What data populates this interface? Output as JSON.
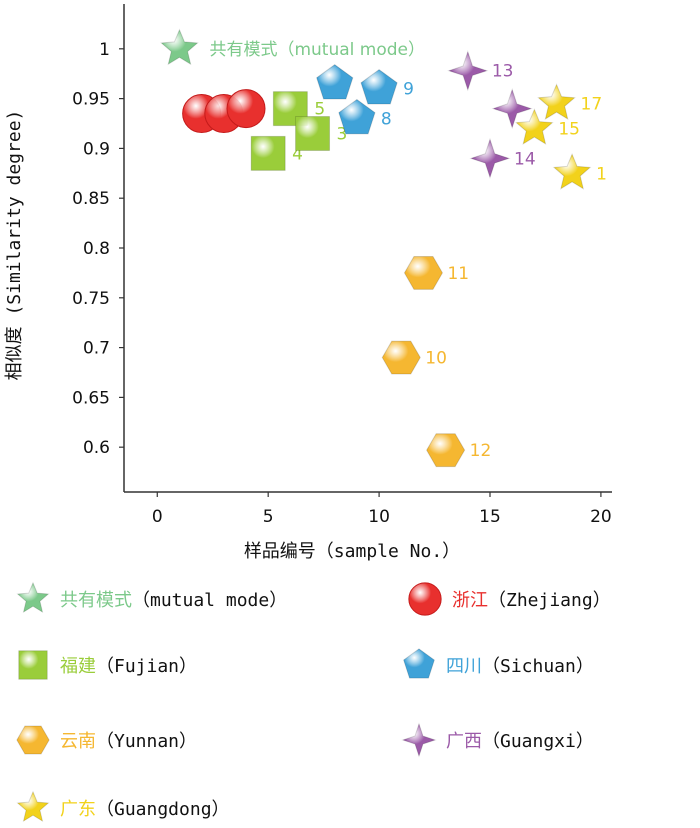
{
  "chart_data": {
    "type": "scatter",
    "xlabel": "样品编号（sample No.）",
    "ylabel": "相似度 (Similarity degree)",
    "xlim": [
      -1.5,
      20.5
    ],
    "ylim": [
      0.555,
      1.045
    ],
    "xticks": [
      0,
      5,
      10,
      15,
      20
    ],
    "yticks": [
      0.6,
      0.65,
      0.7,
      0.75,
      0.8,
      0.85,
      0.9,
      0.95,
      1
    ],
    "ytick_labels": [
      "0.6",
      "0.65",
      "0.7",
      "0.75",
      "0.8",
      "0.85",
      "0.9",
      "0.95",
      "1"
    ],
    "series": [
      {
        "name_cn": "共有模式",
        "name_en": "（mutual mode）",
        "color": "#7cc98a",
        "marker": "star",
        "points": [
          {
            "x": 1,
            "y": 1.0,
            "label": ""
          }
        ],
        "inline_label": "共有模式（mutual mode）"
      },
      {
        "name_cn": "浙江",
        "name_en": "（Zhejiang）",
        "color": "#e8302e",
        "marker": "circle",
        "points": [
          {
            "x": 2,
            "y": 0.935,
            "label": ""
          },
          {
            "x": 3,
            "y": 0.935,
            "label": ""
          },
          {
            "x": 4,
            "y": 0.94,
            "label": ""
          }
        ]
      },
      {
        "name_cn": "福建",
        "name_en": "（Fujian）",
        "color": "#9acd3a",
        "marker": "square",
        "points": [
          {
            "x": 5,
            "y": 0.895,
            "label": "4"
          },
          {
            "x": 6,
            "y": 0.94,
            "label": "5"
          },
          {
            "x": 7,
            "y": 0.915,
            "label": "3"
          }
        ]
      },
      {
        "name_cn": "四川",
        "name_en": "（Sichuan）",
        "color": "#3fa2d8",
        "marker": "pentagon",
        "points": [
          {
            "x": 8,
            "y": 0.965,
            "label": ""
          },
          {
            "x": 9,
            "y": 0.93,
            "label": "8"
          },
          {
            "x": 10,
            "y": 0.96,
            "label": "9"
          }
        ]
      },
      {
        "name_cn": "云南",
        "name_en": "（Yunnan）",
        "color": "#f5b731",
        "marker": "hexagon",
        "points": [
          {
            "x": 11,
            "y": 0.69,
            "label": "10"
          },
          {
            "x": 12,
            "y": 0.775,
            "label": "11"
          },
          {
            "x": 13,
            "y": 0.597,
            "label": "12"
          }
        ]
      },
      {
        "name_cn": "广西",
        "name_en": "（Guangxi）",
        "color": "#9b5aa8",
        "marker": "diamond-star",
        "points": [
          {
            "x": 14,
            "y": 0.978,
            "label": "13"
          },
          {
            "x": 15,
            "y": 0.89,
            "label": "14"
          },
          {
            "x": 16,
            "y": 0.94,
            "label": ""
          }
        ]
      },
      {
        "name_cn": "广东",
        "name_en": "（Guangdong）",
        "color": "#f2d21b",
        "marker": "star",
        "points": [
          {
            "x": 17,
            "y": 0.92,
            "label": "15"
          },
          {
            "x": 18,
            "y": 0.945,
            "label": "17"
          },
          {
            "x": 18.7,
            "y": 0.875,
            "label": "1"
          }
        ]
      }
    ]
  },
  "legend": [
    {
      "cn": "共有模式",
      "en": "（mutual mode）",
      "color": "#7cc98a",
      "marker": "star"
    },
    {
      "cn": "浙江",
      "en": "（Zhejiang）",
      "color": "#e8302e",
      "marker": "circle"
    },
    {
      "cn": "福建",
      "en": "（Fujian）",
      "color": "#9acd3a",
      "marker": "square"
    },
    {
      "cn": "四川",
      "en": "（Sichuan）",
      "color": "#3fa2d8",
      "marker": "pentagon"
    },
    {
      "cn": "云南",
      "en": "（Yunnan）",
      "color": "#f5b731",
      "marker": "hexagon"
    },
    {
      "cn": "广西",
      "en": "（Guangxi）",
      "color": "#9b5aa8",
      "marker": "diamond-star"
    },
    {
      "cn": "广东",
      "en": "（Guangdong）",
      "color": "#f2d21b",
      "marker": "star"
    }
  ]
}
